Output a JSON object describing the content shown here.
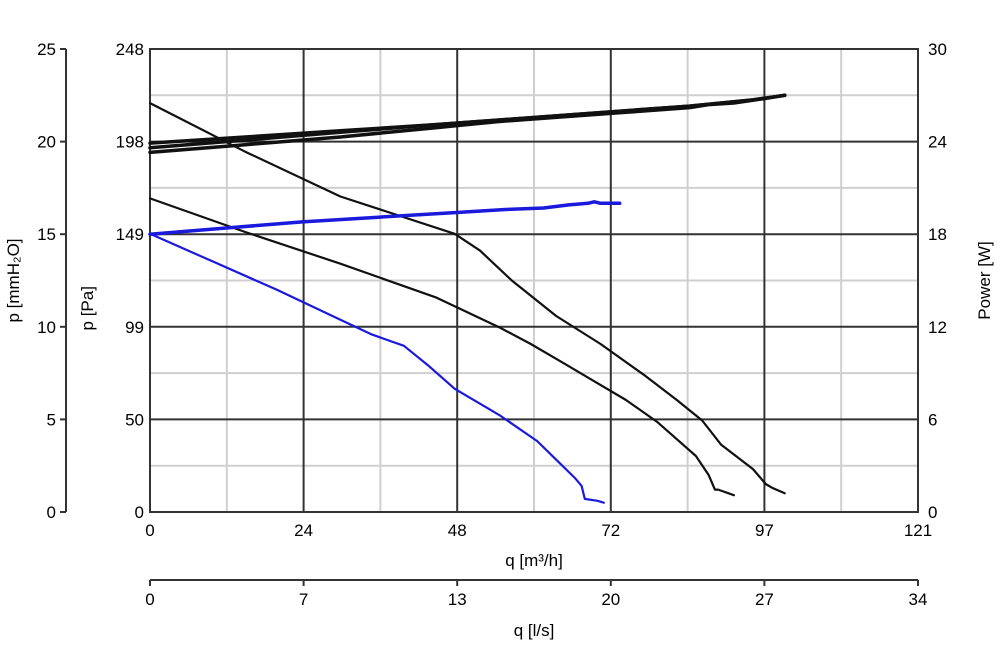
{
  "chart_data": {
    "type": "line",
    "axes": {
      "x_bottom": {
        "label": "q [m³/h]",
        "ticks": [
          "0",
          "24",
          "48",
          "72",
          "97",
          "121"
        ],
        "range": [
          0,
          121
        ]
      },
      "x_secondary": {
        "label": "q [l/s]",
        "ticks": [
          "0",
          "7",
          "13",
          "20",
          "27",
          "34"
        ],
        "range": [
          0,
          34
        ]
      },
      "y_left_pa": {
        "label": "p [Pa]",
        "ticks": [
          "0",
          "50",
          "99",
          "149",
          "198",
          "248"
        ],
        "range": [
          0,
          248
        ]
      },
      "y_left_mmh2o": {
        "label": "p [mmH₂O]",
        "ticks": [
          "0",
          "5",
          "10",
          "15",
          "20",
          "25"
        ],
        "range": [
          0,
          25
        ]
      },
      "y_right_power": {
        "label": "Power [W]",
        "ticks": [
          "0",
          "6",
          "12",
          "18",
          "24",
          "30"
        ],
        "range": [
          0,
          30
        ]
      }
    },
    "grid": true,
    "series": [
      {
        "kind": "pressure",
        "color": "#1a1adc",
        "x": [
          0,
          10,
          20,
          30,
          35,
          40,
          44,
          48,
          55,
          61,
          64,
          67,
          68,
          68.5,
          70.5,
          71.5
        ],
        "y": [
          149,
          134,
          119,
          103,
          95,
          89,
          78,
          66,
          52,
          38,
          28,
          18,
          14,
          7,
          6,
          5
        ]
      },
      {
        "kind": "pressure",
        "color": "#111111",
        "x": [
          0,
          15,
          30,
          45,
          55,
          60,
          65,
          70,
          75,
          80,
          84,
          86,
          88,
          89,
          89.5,
          92
        ],
        "y": [
          168,
          150,
          133,
          115,
          99,
          90,
          80,
          70,
          60,
          48,
          36,
          30,
          20,
          12,
          12,
          9
        ]
      },
      {
        "kind": "pressure",
        "color": "#111111",
        "x": [
          0,
          15,
          30,
          48,
          52,
          57,
          64,
          71,
          78,
          83,
          87,
          90,
          95,
          97,
          98,
          100
        ],
        "y": [
          219,
          193,
          169,
          149,
          140,
          124,
          105,
          90,
          73,
          60,
          49,
          36,
          23,
          15,
          13,
          10
        ]
      },
      {
        "kind": "power",
        "color": "#1a1adc",
        "x": [
          0,
          12,
          24,
          36,
          48,
          56,
          62,
          66,
          69,
          70,
          71,
          74
        ],
        "y": [
          18.0,
          18.4,
          18.8,
          19.1,
          19.4,
          19.6,
          19.7,
          19.9,
          20.0,
          20.1,
          20.0,
          20.0
        ]
      },
      {
        "kind": "power",
        "color": "#111111",
        "x": [
          0,
          15,
          30,
          45,
          55,
          65,
          75,
          85,
          90,
          95,
          100
        ],
        "y": [
          23.6,
          24.1,
          24.6,
          25.1,
          25.4,
          25.7,
          26.0,
          26.3,
          26.5,
          26.7,
          27.0
        ]
      },
      {
        "kind": "power",
        "color": "#111111",
        "x": [
          0,
          15,
          30,
          45,
          55,
          65,
          75,
          85,
          88,
          92,
          97,
          100
        ],
        "y": [
          23.3,
          23.8,
          24.3,
          24.9,
          25.3,
          25.6,
          25.9,
          26.2,
          26.4,
          26.5,
          26.8,
          27.0
        ]
      },
      {
        "kind": "power",
        "color": "#111111",
        "x": [
          0,
          15,
          30,
          45,
          55,
          65,
          75,
          85,
          90,
          95,
          100
        ],
        "y": [
          23.9,
          24.3,
          24.7,
          25.1,
          25.4,
          25.7,
          26.0,
          26.3,
          26.5,
          26.7,
          27.0
        ]
      }
    ]
  }
}
